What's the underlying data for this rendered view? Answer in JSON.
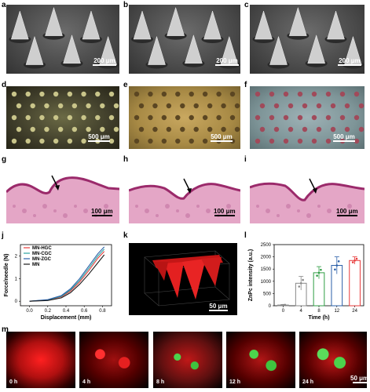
{
  "labels": {
    "a": "a",
    "b": "b",
    "c": "c",
    "d": "d",
    "e": "e",
    "f": "f",
    "g": "g",
    "h": "h",
    "i": "i",
    "j": "j",
    "k": "k",
    "l": "l",
    "m": "m"
  },
  "scalebars": {
    "sem": "200 μm",
    "photo": "500 μm",
    "histo": "100 μm",
    "confocal_k": "50 μm",
    "confocal_m": "50 μm"
  },
  "colors": {
    "red": "#e83a3a",
    "teal": "#2aa2a0",
    "blue": "#2a5fa8",
    "black": "#1a1a1a",
    "gray": "#888888",
    "green": "#2f9e44",
    "histo": "#e7a7c7"
  },
  "time_labels": [
    "0 h",
    "4 h",
    "8 h",
    "12 h",
    "24 h"
  ],
  "chart_data": [
    {
      "type": "line",
      "xlabel": "Displacement (mm)",
      "ylabel": "Force/needle (N)",
      "xlim": [
        -0.1,
        0.9
      ],
      "ylim": [
        -0.2,
        2.5
      ],
      "xticks": [
        "0.0",
        "0.2",
        "0.4",
        "0.6",
        "0.8"
      ],
      "yticks": [
        "0",
        "1",
        "2"
      ],
      "legend_position": "top-left",
      "series": [
        {
          "name": "MN-HGC",
          "color": "#e83a3a",
          "x": [
            0,
            0.2,
            0.35,
            0.45,
            0.55,
            0.65,
            0.75,
            0.82
          ],
          "y": [
            0,
            0.05,
            0.2,
            0.45,
            0.85,
            1.35,
            1.9,
            2.2
          ]
        },
        {
          "name": "MN-CGC",
          "color": "#2aa2a0",
          "x": [
            0,
            0.2,
            0.35,
            0.45,
            0.55,
            0.65,
            0.75,
            0.82
          ],
          "y": [
            0,
            0.06,
            0.22,
            0.5,
            0.92,
            1.45,
            2.0,
            2.3
          ]
        },
        {
          "name": "MN-ZGC",
          "color": "#2a5fa8",
          "x": [
            0,
            0.2,
            0.35,
            0.45,
            0.55,
            0.65,
            0.75,
            0.82
          ],
          "y": [
            0,
            0.07,
            0.25,
            0.55,
            1.0,
            1.55,
            2.1,
            2.4
          ]
        },
        {
          "name": "MN",
          "color": "#1a1a1a",
          "x": [
            0,
            0.2,
            0.35,
            0.45,
            0.55,
            0.65,
            0.75,
            0.82
          ],
          "y": [
            0,
            0.03,
            0.15,
            0.38,
            0.75,
            1.2,
            1.7,
            2.05
          ]
        }
      ]
    },
    {
      "type": "bar",
      "xlabel": "Time (h)",
      "ylabel": "ZnPc intensity (a.u.)",
      "categories": [
        "0",
        "4",
        "8",
        "12",
        "24"
      ],
      "values": [
        30,
        920,
        1350,
        1650,
        1850
      ],
      "errors": [
        20,
        280,
        250,
        350,
        150
      ],
      "ylim": [
        0,
        2500
      ],
      "yticks": [
        "0",
        "500",
        "1000",
        "1500",
        "2000",
        "2500"
      ],
      "bar_colors": [
        "#888888",
        "#888888",
        "#2f9e44",
        "#2a5fa8",
        "#e83a3a"
      ]
    }
  ]
}
